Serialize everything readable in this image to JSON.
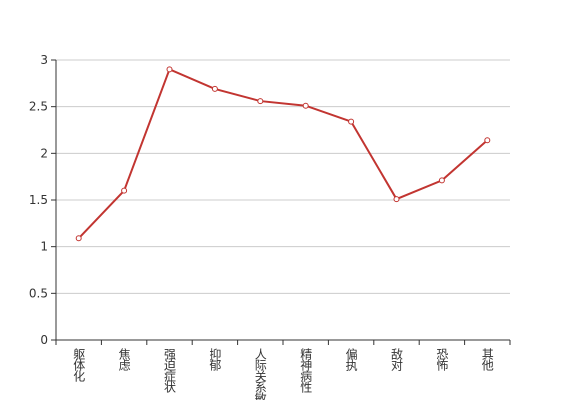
{
  "chart_data": {
    "type": "line",
    "categories": [
      "躯体化",
      "焦虑",
      "强迫症状",
      "抑郁",
      "人际关系敏感",
      "精神病性",
      "偏执",
      "敌对",
      "恐怖",
      "其他"
    ],
    "values": [
      1.09,
      1.6,
      2.9,
      2.69,
      2.56,
      2.51,
      2.34,
      1.51,
      1.71,
      2.14
    ],
    "color": "#c23531",
    "ylim": [
      0,
      3
    ],
    "yticks": [
      0,
      0.5,
      1,
      1.5,
      2,
      2.5,
      3
    ],
    "grid": true
  }
}
